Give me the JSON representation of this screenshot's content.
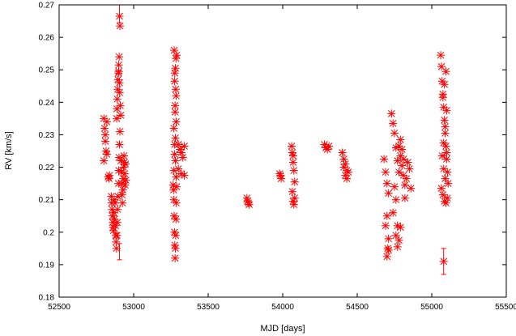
{
  "chart_data": {
    "type": "scatter",
    "xlabel": "MJD [days]",
    "ylabel": "RV [km/s]",
    "xlim": [
      52500,
      55500
    ],
    "ylim": [
      0.18,
      0.27
    ],
    "xticks": [
      52500,
      53000,
      53500,
      54000,
      54500,
      55000,
      55500
    ],
    "yticks": [
      0.18,
      0.19,
      0.2,
      0.21,
      0.22,
      0.23,
      0.24,
      0.25,
      0.26,
      0.27
    ],
    "xtick_labels": [
      "52500",
      "53000",
      "53500",
      "54000",
      "54500",
      "55000",
      "55500"
    ],
    "ytick_labels": [
      "0.18",
      "0.19",
      "0.2",
      "0.21",
      "0.22",
      "0.23",
      "0.24",
      "0.25",
      "0.26",
      "0.27"
    ],
    "grid": false,
    "legend": "none",
    "marker": "asterisk",
    "color": "#ff0000",
    "series": [
      {
        "x": [
          52800,
          52805,
          52810,
          52815,
          52820,
          52800,
          52810,
          52820,
          52830,
          52835,
          52838,
          52850,
          52852,
          52855,
          52858,
          52860,
          52862,
          52865,
          52868,
          52870,
          52872,
          52875,
          52878,
          52880,
          52882,
          52885,
          52888,
          52890,
          52892,
          52895,
          52898,
          52900,
          52902,
          52905,
          52908,
          52886,
          52888,
          52890,
          52893,
          52895,
          52898,
          52900,
          52903,
          52906,
          52910,
          52913,
          52900,
          52905,
          52905,
          52908,
          52915,
          52918,
          52920,
          52922,
          52925,
          52928,
          52930,
          52932,
          52935,
          52938,
          52940,
          52942,
          52945,
          52948,
          53265,
          53268,
          53270,
          53272,
          53274,
          53276,
          53278,
          53280,
          53282,
          53284,
          53286,
          53288,
          53270,
          53275,
          53280,
          53285,
          53278,
          53282,
          53276,
          53284,
          53272,
          53288,
          53280,
          53275,
          53285,
          53278,
          53270,
          53275,
          53280,
          53285,
          53300,
          53310,
          53320,
          53330,
          53340,
          53300,
          53320,
          53340,
          53760,
          53765,
          53770,
          53775,
          53980,
          53985,
          53990,
          54060,
          54065,
          54070,
          54075,
          54080,
          54065,
          54070,
          54075,
          54080,
          54070,
          54280,
          54290,
          54300,
          54310,
          54400,
          54410,
          54420,
          54430,
          54440,
          54420,
          54430,
          54410,
          54680,
          54690,
          54700,
          54710,
          54700,
          54690,
          54710,
          54700,
          54705,
          54710,
          54730,
          54740,
          54750,
          54760,
          54770,
          54780,
          54750,
          54760,
          54740,
          54770,
          54780,
          54790,
          54800,
          54810,
          54820,
          54830,
          54840,
          54850,
          54860,
          54790,
          54800,
          54810,
          54820,
          54760,
          54770,
          54780,
          54790,
          55060,
          55065,
          55070,
          55075,
          55080,
          55085,
          55090,
          55095,
          55100,
          55105,
          55110,
          55065,
          55075,
          55085,
          55095,
          55105,
          55070,
          55080,
          55090,
          55100,
          55075,
          55085,
          55095,
          55080,
          55090,
          55100,
          55080
        ],
        "y": [
          0.235,
          0.232,
          0.228,
          0.225,
          0.224,
          0.222,
          0.23,
          0.234,
          0.217,
          0.2165,
          0.2175,
          0.211,
          0.209,
          0.207,
          0.205,
          0.203,
          0.2015,
          0.2005,
          0.206,
          0.21,
          0.204,
          0.209,
          0.202,
          0.199,
          0.197,
          0.195,
          0.199,
          0.203,
          0.207,
          0.211,
          0.215,
          0.219,
          0.223,
          0.227,
          0.231,
          0.235,
          0.238,
          0.241,
          0.244,
          0.247,
          0.249,
          0.2515,
          0.254,
          0.243,
          0.239,
          0.236,
          0.2495,
          0.246,
          0.2665,
          0.2635,
          0.222,
          0.2185,
          0.215,
          0.2115,
          0.209,
          0.213,
          0.2165,
          0.22,
          0.2235,
          0.2215,
          0.218,
          0.2145,
          0.221,
          0.216,
          0.2145,
          0.213,
          0.21,
          0.205,
          0.2,
          0.196,
          0.192,
          0.195,
          0.199,
          0.204,
          0.209,
          0.214,
          0.219,
          0.224,
          0.229,
          0.234,
          0.239,
          0.244,
          0.249,
          0.2535,
          0.256,
          0.2545,
          0.2505,
          0.2465,
          0.242,
          0.237,
          0.232,
          0.227,
          0.222,
          0.217,
          0.227,
          0.2255,
          0.2245,
          0.223,
          0.2265,
          0.2195,
          0.218,
          0.2175,
          0.2105,
          0.2095,
          0.209,
          0.2085,
          0.218,
          0.2175,
          0.2165,
          0.2265,
          0.2245,
          0.2215,
          0.219,
          0.2155,
          0.2125,
          0.2095,
          0.2085,
          0.2105,
          0.2235,
          0.227,
          0.226,
          0.2255,
          0.2265,
          0.2245,
          0.2225,
          0.221,
          0.219,
          0.2185,
          0.2175,
          0.2165,
          0.22,
          0.2225,
          0.2185,
          0.215,
          0.212,
          0.205,
          0.202,
          0.198,
          0.1925,
          0.195,
          0.1945,
          0.2365,
          0.2335,
          0.2305,
          0.226,
          0.222,
          0.2185,
          0.214,
          0.21,
          0.206,
          0.202,
          0.2265,
          0.2235,
          0.2205,
          0.2175,
          0.2145,
          0.2165,
          0.2215,
          0.2195,
          0.2135,
          0.2285,
          0.2255,
          0.2225,
          0.2105,
          0.199,
          0.1955,
          0.1975,
          0.2015,
          0.2545,
          0.251,
          0.2465,
          0.2425,
          0.2385,
          0.2345,
          0.2305,
          0.2265,
          0.2225,
          0.2185,
          0.215,
          0.2135,
          0.2115,
          0.2095,
          0.209,
          0.2105,
          0.2235,
          0.2275,
          0.2325,
          0.2375,
          0.2415,
          0.2455,
          0.2495,
          0.2195,
          0.2165,
          0.2245,
          0.191
        ]
      }
    ],
    "error_bars": [
      {
        "x": 52905,
        "y": 0.2665,
        "low": 0.2645,
        "high": 0.27
      },
      {
        "x": 52905,
        "y": 0.194,
        "low": 0.1915,
        "high": 0.1965
      },
      {
        "x": 55080,
        "y": 0.191,
        "low": 0.187,
        "high": 0.195
      }
    ]
  }
}
